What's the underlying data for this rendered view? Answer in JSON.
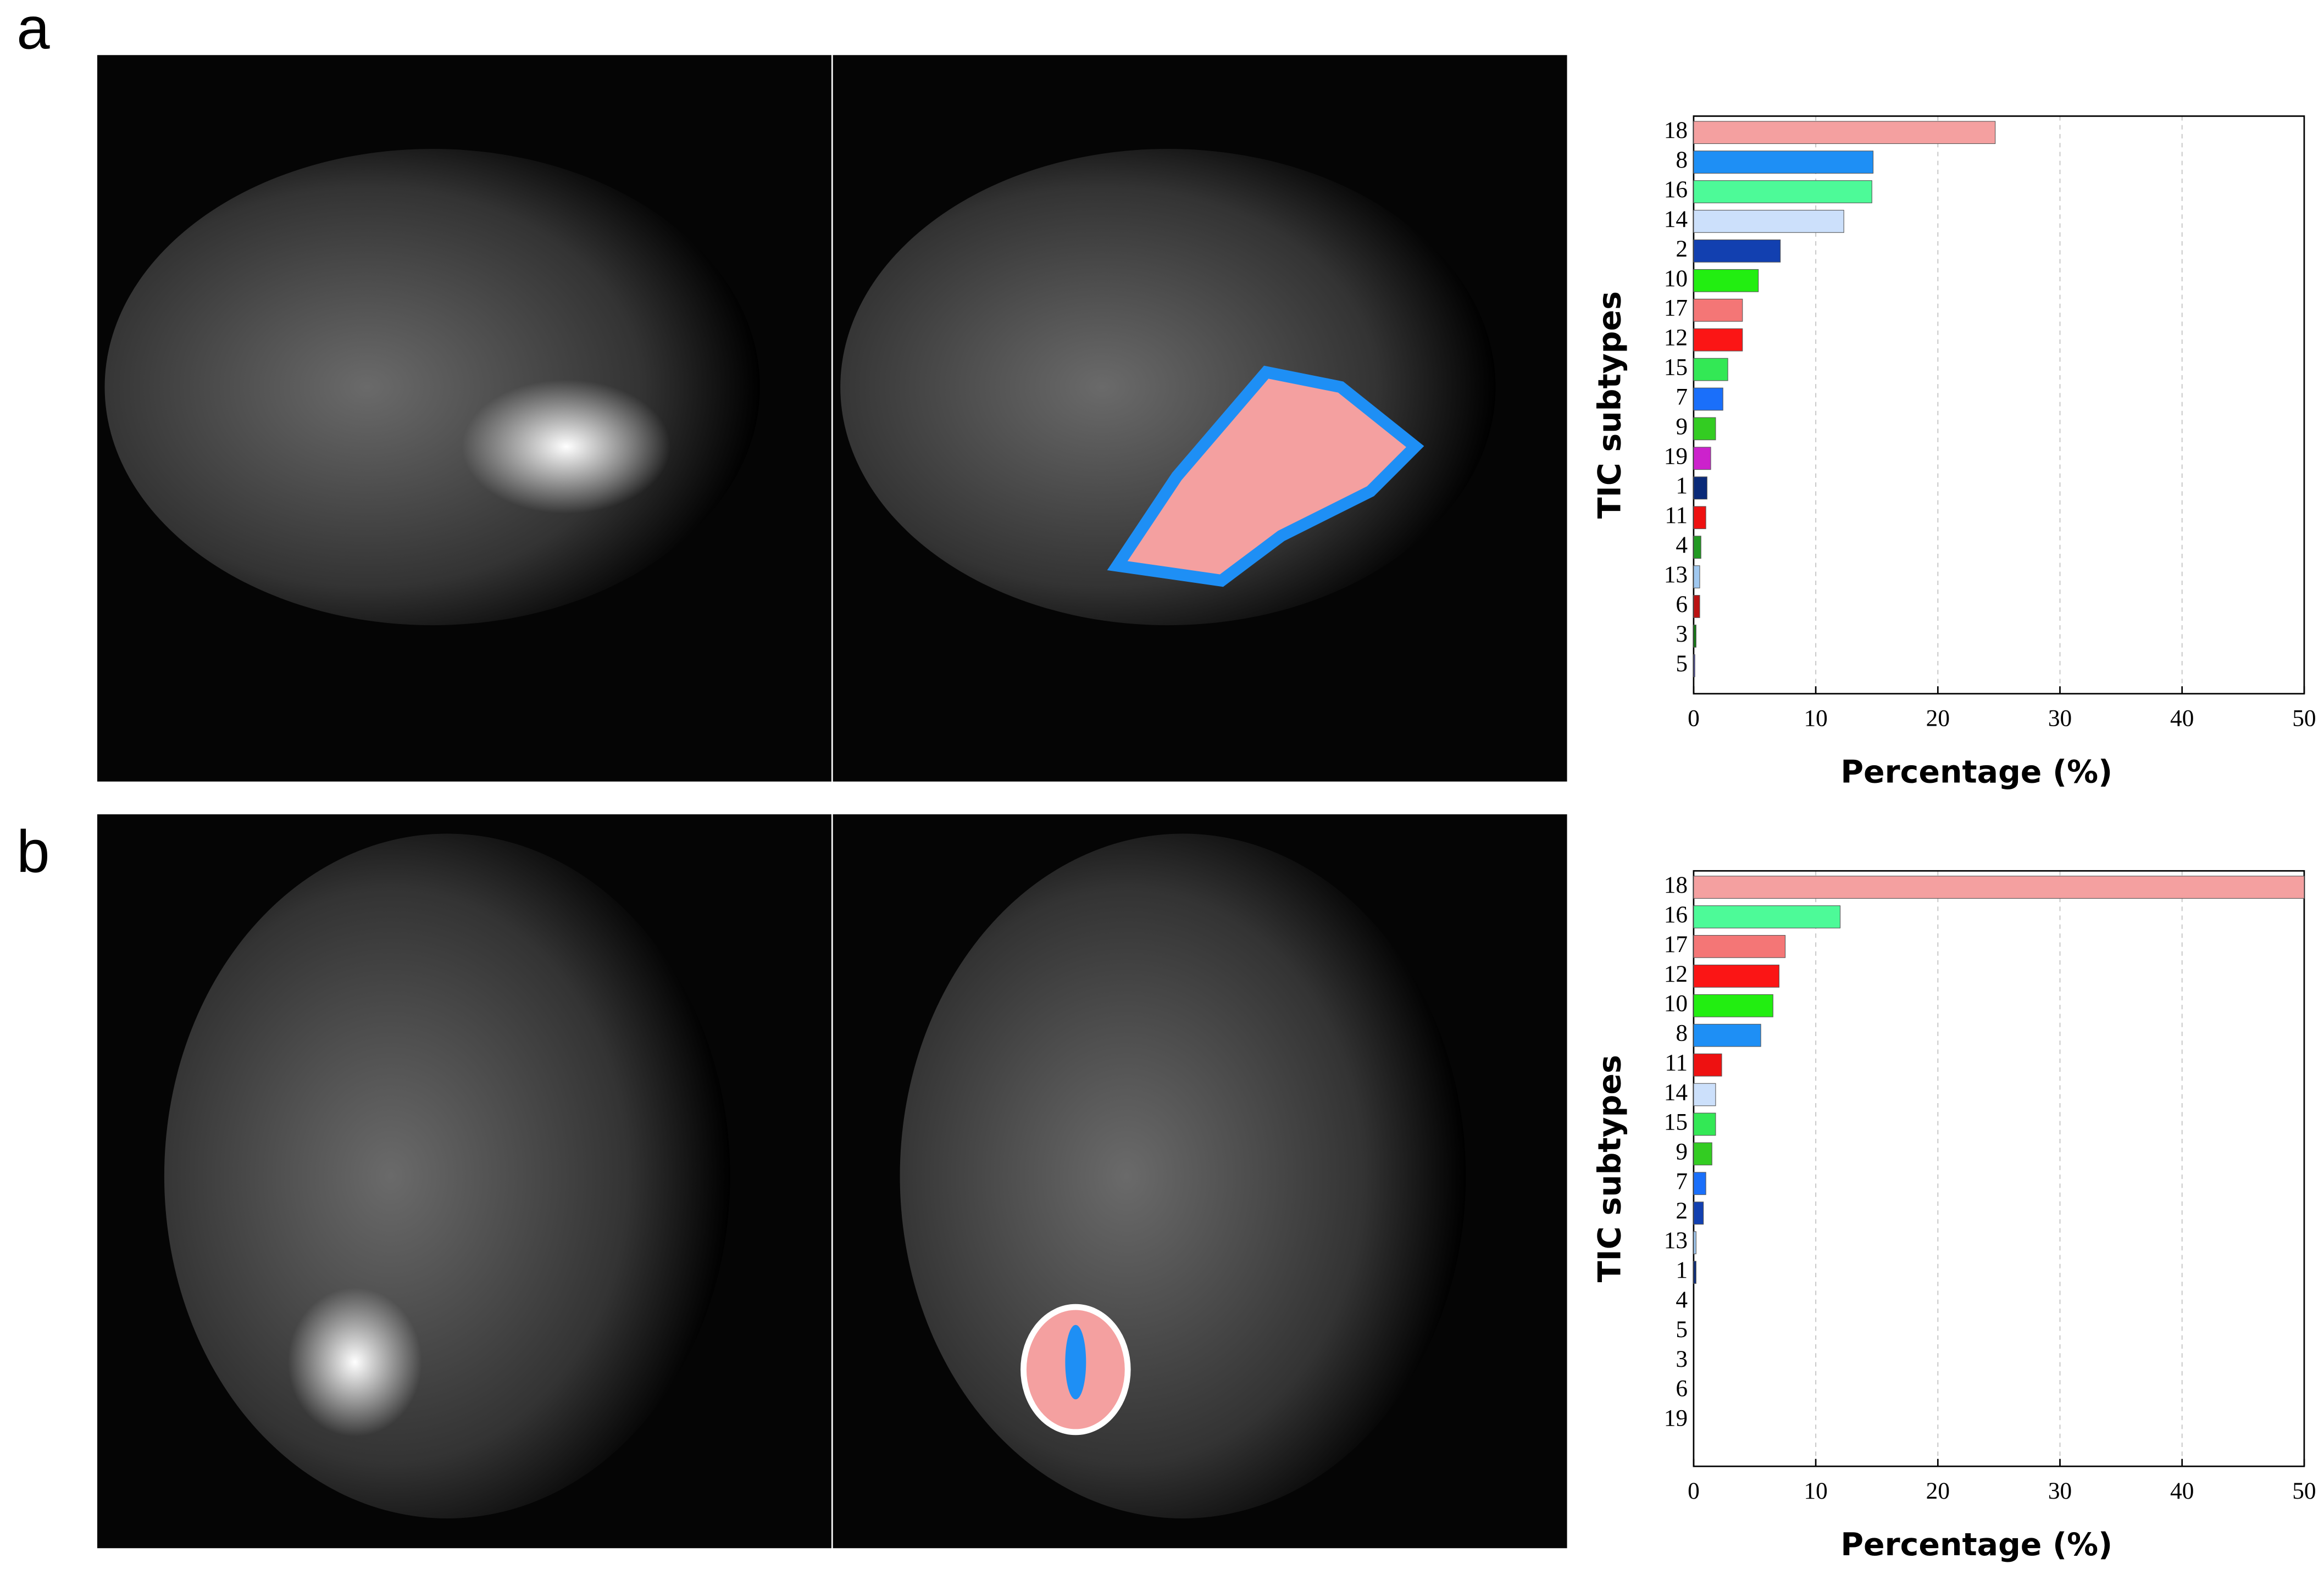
{
  "chart_data": [
    {
      "type": "barh",
      "label": "a",
      "xlabel": "Percentage (%)",
      "ylabel": "TIC subtypes",
      "categories": [
        "18",
        "8",
        "16",
        "14",
        "2",
        "10",
        "17",
        "12",
        "15",
        "7",
        "9",
        "19",
        "1",
        "11",
        "4",
        "13",
        "6",
        "3",
        "5"
      ],
      "values": [
        24.7,
        14.7,
        14.6,
        12.3,
        7.1,
        5.3,
        4.0,
        4.0,
        2.8,
        2.4,
        1.8,
        1.4,
        1.1,
        1.0,
        0.6,
        0.5,
        0.5,
        0.2,
        0.1
      ],
      "colors": [
        "#f4a0a0",
        "#1e8ff5",
        "#4dfa98",
        "#cce0fb",
        "#1240b0",
        "#22ee11",
        "#f47676",
        "#fb1515",
        "#33e855",
        "#1a6ffa",
        "#33cc22",
        "#cc22cc",
        "#0a2a78",
        "#ee1111",
        "#229922",
        "#a0c8f0",
        "#bb1111",
        "#117711",
        "#4444aa"
      ],
      "xlim": [
        0,
        50
      ],
      "xticks": [
        0,
        10,
        20,
        30,
        40,
        50
      ],
      "grid": true
    },
    {
      "type": "barh",
      "label": "b",
      "xlabel": "Percentage (%)",
      "ylabel": "TIC subtypes",
      "categories": [
        "18",
        "16",
        "17",
        "12",
        "10",
        "8",
        "11",
        "14",
        "15",
        "9",
        "7",
        "2",
        "13",
        "1",
        "4",
        "5",
        "3",
        "6",
        "19"
      ],
      "values": [
        50,
        12.0,
        7.5,
        7.0,
        6.5,
        5.5,
        2.3,
        1.8,
        1.8,
        1.5,
        1.0,
        0.8,
        0.2,
        0.2,
        0,
        0,
        0,
        0,
        0
      ],
      "colors": [
        "#f4a0a0",
        "#4dfa98",
        "#f47676",
        "#fb1515",
        "#22ee11",
        "#1e8ff5",
        "#ee1111",
        "#cce0fb",
        "#33e855",
        "#33cc22",
        "#1a6ffa",
        "#1240b0",
        "#a0c8f0",
        "#0a2a78",
        "#229922",
        "#4444aa",
        "#117711",
        "#bb1111",
        "#cc22cc"
      ],
      "xlim": [
        0,
        50
      ],
      "xticks": [
        0,
        10,
        20,
        30,
        40,
        50
      ],
      "grid": true
    }
  ]
}
